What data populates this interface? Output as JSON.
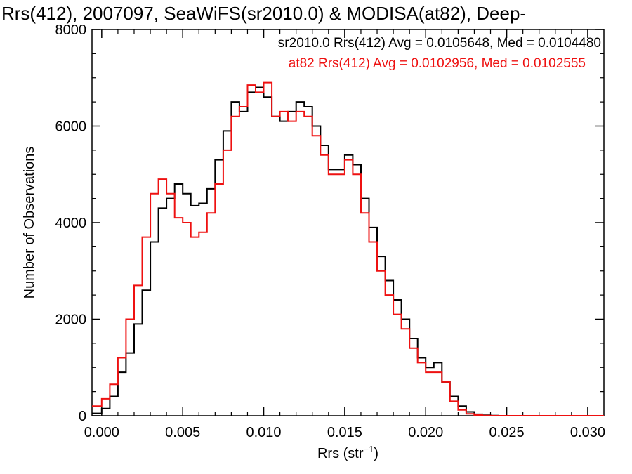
{
  "chart_data": {
    "type": "line",
    "title": "Rrs(412), 2007097, SeaWiFS(sr2010.0) & MODISA(at82), Deep-",
    "xlabel": "Rrs (str",
    "xlabel_sup": "−1",
    "xlabel_end": ")",
    "ylabel": "Number of Observations",
    "xlim": [
      -0.0006,
      0.031
    ],
    "ylim": [
      0,
      8000
    ],
    "xticks": [
      0.0,
      0.005,
      0.01,
      0.015,
      0.02,
      0.025,
      0.03
    ],
    "xtick_labels": [
      "0.000",
      "0.005",
      "0.010",
      "0.015",
      "0.020",
      "0.025",
      "0.030"
    ],
    "yticks": [
      0,
      2000,
      4000,
      6000,
      8000
    ],
    "ytick_labels": [
      "0",
      "2000",
      "4000",
      "6000",
      "8000"
    ],
    "grid": false,
    "legend_placement": "top-right",
    "series": [
      {
        "name": "sr2010.0",
        "label": "sr2010.0 Rrs(412) Avg = 0.0105648, Med = 0.0104480",
        "color": "#000000",
        "x": [
          -0.0006,
          0.0,
          0.0005,
          0.001,
          0.0015,
          0.002,
          0.0025,
          0.003,
          0.0035,
          0.004,
          0.0045,
          0.005,
          0.0055,
          0.006,
          0.0065,
          0.007,
          0.0075,
          0.008,
          0.0085,
          0.009,
          0.0095,
          0.01,
          0.0105,
          0.011,
          0.0115,
          0.012,
          0.0125,
          0.013,
          0.0135,
          0.014,
          0.0145,
          0.015,
          0.0155,
          0.016,
          0.0165,
          0.017,
          0.0175,
          0.018,
          0.0185,
          0.019,
          0.0195,
          0.02,
          0.0205,
          0.021,
          0.0215,
          0.022,
          0.0225,
          0.023,
          0.0235,
          0.024,
          0.0245,
          0.025,
          0.026,
          0.027,
          0.028,
          0.029,
          0.031
        ],
        "y": [
          50,
          150,
          400,
          900,
          1300,
          1900,
          2600,
          3600,
          4300,
          4500,
          4800,
          4600,
          4350,
          4400,
          4700,
          5300,
          5900,
          6500,
          6300,
          6700,
          6800,
          6600,
          6200,
          6100,
          6300,
          6500,
          6400,
          6000,
          5600,
          5100,
          5100,
          5400,
          5200,
          4500,
          3900,
          3300,
          2800,
          2400,
          2000,
          1600,
          1200,
          1000,
          1100,
          700,
          400,
          200,
          80,
          30,
          10,
          5,
          0,
          0,
          0,
          0,
          0,
          0,
          0
        ]
      },
      {
        "name": "at82",
        "label": "at82 Rrs(412) Avg = 0.0102956, Med = 0.0102555",
        "color": "#ee1111",
        "x": [
          -0.0006,
          0.0,
          0.0005,
          0.001,
          0.0015,
          0.002,
          0.0025,
          0.003,
          0.0035,
          0.004,
          0.0045,
          0.005,
          0.0055,
          0.006,
          0.0065,
          0.007,
          0.0075,
          0.008,
          0.0085,
          0.009,
          0.0095,
          0.01,
          0.0105,
          0.011,
          0.0115,
          0.012,
          0.0125,
          0.013,
          0.0135,
          0.014,
          0.0145,
          0.015,
          0.0155,
          0.016,
          0.0165,
          0.017,
          0.0175,
          0.018,
          0.0185,
          0.019,
          0.0195,
          0.02,
          0.0205,
          0.021,
          0.0215,
          0.022,
          0.0225,
          0.023,
          0.0235,
          0.024,
          0.0245,
          0.025,
          0.026,
          0.027,
          0.028,
          0.029,
          0.031
        ],
        "y": [
          200,
          350,
          650,
          1200,
          2000,
          2700,
          3700,
          4600,
          4900,
          4600,
          4100,
          4000,
          3700,
          3800,
          4200,
          4800,
          5500,
          6200,
          6400,
          6850,
          6700,
          6900,
          6200,
          6300,
          6100,
          6300,
          6200,
          5800,
          5400,
          5000,
          5000,
          5300,
          5000,
          4200,
          3600,
          3000,
          2500,
          2100,
          1800,
          1400,
          1100,
          900,
          900,
          700,
          300,
          120,
          40,
          15,
          5,
          0,
          0,
          0,
          0,
          0,
          0,
          0,
          0
        ]
      }
    ]
  }
}
